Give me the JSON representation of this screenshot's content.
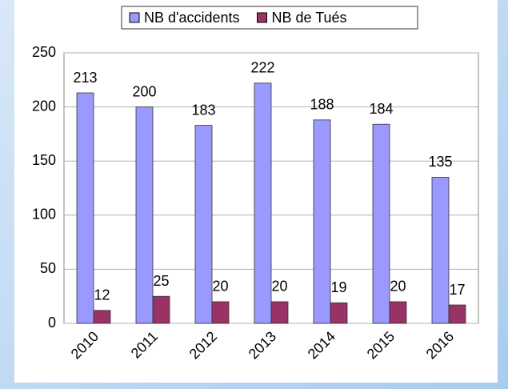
{
  "chart_data": {
    "type": "bar",
    "categories": [
      "2010",
      "2011",
      "2012",
      "2013",
      "2014",
      "2015",
      "2016"
    ],
    "series": [
      {
        "name": "NB d'accidents",
        "color": "#9999ff",
        "values": [
          213,
          200,
          183,
          222,
          188,
          184,
          135
        ]
      },
      {
        "name": "NB de Tués",
        "color": "#993366",
        "values": [
          12,
          25,
          20,
          20,
          19,
          20,
          17
        ]
      }
    ],
    "ylim": [
      0,
      250
    ],
    "yticks": [
      0,
      50,
      100,
      150,
      200,
      250
    ],
    "grid": true,
    "legend": "top"
  }
}
